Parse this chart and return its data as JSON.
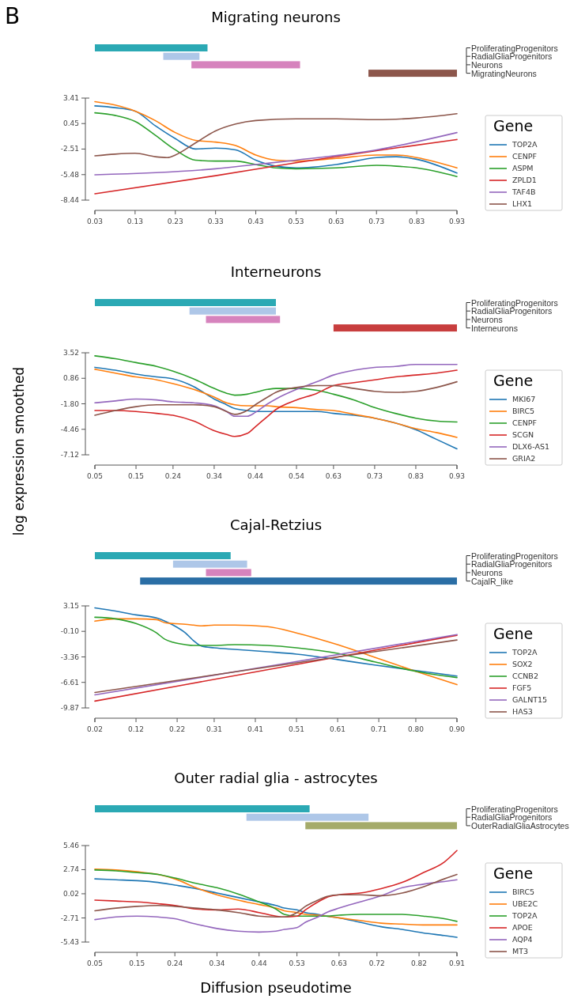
{
  "chart_data": [
    {
      "type": "bar",
      "orientation": "horizontal",
      "title": "Migrating neurons",
      "annotations": [
        "B"
      ],
      "categories": [
        "ProliferatingProgenitors",
        "RadialGliaProgenitors",
        "Neurons",
        "MigratingNeurons"
      ],
      "base": [
        0.03,
        0.2,
        0.27,
        0.71
      ],
      "values": [
        0.28,
        0.09,
        0.27,
        0.22
      ],
      "colors": [
        "#2ba9b4",
        "#aec7e8",
        "#d683bd",
        "#8c564b"
      ],
      "xlim": [
        0.03,
        0.93
      ],
      "tick_labels": false
    },
    {
      "type": "line",
      "legend_title": "Gene",
      "legend": "right",
      "xlim": [
        0.03,
        0.93
      ],
      "xticks": [
        0.03,
        0.13,
        0.23,
        0.33,
        0.43,
        0.53,
        0.63,
        0.73,
        0.83,
        0.93
      ],
      "ylim": [
        -8.44,
        3.41
      ],
      "yticks": [
        3.41,
        0.45,
        -2.51,
        -5.48,
        -8.44
      ],
      "x": [
        0.03,
        0.08,
        0.13,
        0.18,
        0.23,
        0.28,
        0.33,
        0.38,
        0.43,
        0.48,
        0.53,
        0.63,
        0.73,
        0.78,
        0.83,
        0.93
      ],
      "series": [
        {
          "name": "TOP2A",
          "color": "#1f77b4",
          "values": [
            2.5,
            2.3,
            1.9,
            0.2,
            -1.3,
            -2.5,
            -2.4,
            -2.6,
            -3.8,
            -4.5,
            -4.7,
            -4.3,
            -3.5,
            -3.4,
            -3.7,
            -5.3
          ]
        },
        {
          "name": "CENPF",
          "color": "#ff7f0e",
          "values": [
            3.0,
            2.6,
            1.9,
            0.8,
            -0.6,
            -1.5,
            -1.7,
            -2.1,
            -3.2,
            -3.8,
            -3.9,
            -3.6,
            -3.2,
            -3.2,
            -3.5,
            -4.7
          ]
        },
        {
          "name": "ASPM",
          "color": "#2ca02c",
          "values": [
            1.7,
            1.4,
            0.7,
            -0.9,
            -2.6,
            -3.8,
            -3.9,
            -3.9,
            -4.3,
            -4.7,
            -4.8,
            -4.7,
            -4.4,
            -4.5,
            -4.7,
            -5.7
          ]
        },
        {
          "name": "ZPLD1",
          "color": "#d62728",
          "x": [
            0.03,
            0.33,
            0.53,
            0.73,
            0.93
          ],
          "values": [
            -7.7,
            -5.6,
            -4.1,
            -2.7,
            -1.4
          ]
        },
        {
          "name": "TAF4B",
          "color": "#9467bd",
          "x": [
            0.03,
            0.33,
            0.43,
            0.53,
            0.73,
            0.93
          ],
          "values": [
            -5.5,
            -4.8,
            -4.3,
            -3.8,
            -2.6,
            -0.6
          ]
        },
        {
          "name": "LHX1",
          "color": "#8c564b",
          "x": [
            0.03,
            0.08,
            0.13,
            0.18,
            0.21,
            0.23,
            0.28,
            0.33,
            0.38,
            0.43,
            0.53,
            0.63,
            0.73,
            0.83,
            0.93
          ],
          "values": [
            -3.3,
            -3.1,
            -3.0,
            -3.4,
            -3.5,
            -3.2,
            -1.8,
            -0.4,
            0.4,
            0.8,
            1.0,
            1.0,
            0.9,
            1.1,
            1.6
          ]
        }
      ]
    },
    {
      "type": "bar",
      "orientation": "horizontal",
      "title": "Interneurons",
      "categories": [
        "ProliferatingProgenitors",
        "RadialGliaProgenitors",
        "Neurons",
        "Interneurons"
      ],
      "base": [
        0.05,
        0.28,
        0.32,
        0.63
      ],
      "values": [
        0.44,
        0.21,
        0.18,
        0.3
      ],
      "colors": [
        "#2ba9b4",
        "#aec7e8",
        "#d683bd",
        "#c83e3e"
      ],
      "xlim": [
        0.05,
        0.93
      ],
      "tick_labels": false
    },
    {
      "type": "line",
      "ylabel": "log expression smoothed",
      "legend_title": "Gene",
      "legend": "right",
      "xlim": [
        0.05,
        0.93
      ],
      "xticks": [
        0.05,
        0.15,
        0.24,
        0.34,
        0.44,
        0.54,
        0.63,
        0.73,
        0.83,
        0.93
      ],
      "ylim": [
        -7.12,
        3.52
      ],
      "yticks": [
        3.52,
        0.86,
        {
          "value": -1.8,
          "label": "-1.80"
        },
        -4.46,
        -7.12
      ],
      "x": [
        0.05,
        0.1,
        0.15,
        0.2,
        0.24,
        0.29,
        0.34,
        0.37,
        0.39,
        0.42,
        0.44,
        0.47,
        0.49,
        0.54,
        0.59,
        0.63,
        0.68,
        0.73,
        0.78,
        0.83,
        0.88,
        0.93
      ],
      "series": [
        {
          "name": "MKI67",
          "color": "#1f77b4",
          "values": [
            2.0,
            1.7,
            1.3,
            1.0,
            0.8,
            0.0,
            -1.3,
            -1.9,
            -2.3,
            -2.5,
            -2.6,
            -2.6,
            -2.6,
            -2.6,
            -2.6,
            -2.8,
            -3.0,
            -3.3,
            -3.8,
            -4.5,
            -5.5,
            -6.5
          ]
        },
        {
          "name": "BIRC5",
          "color": "#ff7f0e",
          "values": [
            1.8,
            1.4,
            1.0,
            0.7,
            0.3,
            -0.3,
            -1.1,
            -1.7,
            -1.9,
            -2.0,
            -2.0,
            -2.0,
            -2.1,
            -2.2,
            -2.4,
            -2.5,
            -2.9,
            -3.3,
            -3.8,
            -4.4,
            -4.8,
            -5.3
          ]
        },
        {
          "name": "CENPF",
          "color": "#2ca02c",
          "values": [
            3.2,
            2.9,
            2.5,
            2.1,
            1.6,
            0.8,
            -0.2,
            -0.7,
            -0.9,
            -0.8,
            -0.6,
            -0.3,
            -0.2,
            -0.2,
            -0.4,
            -0.8,
            -1.4,
            -2.2,
            -2.8,
            -3.3,
            -3.6,
            -3.7
          ]
        },
        {
          "name": "SCGN",
          "color": "#d62728",
          "values": [
            -2.5,
            -2.5,
            -2.6,
            -2.8,
            -3.0,
            -3.6,
            -4.6,
            -5.0,
            -5.2,
            -4.9,
            -4.2,
            -3.1,
            -2.4,
            -1.4,
            -0.7,
            0.1,
            0.4,
            0.7,
            1.0,
            1.2,
            1.4,
            1.7
          ]
        },
        {
          "name": "DLX6-AS1",
          "color": "#9467bd",
          "values": [
            -1.7,
            -1.5,
            -1.3,
            -1.4,
            -1.6,
            -1.7,
            -2.0,
            -2.6,
            -3.1,
            -3.1,
            -2.7,
            -1.8,
            -1.3,
            -0.3,
            0.5,
            1.2,
            1.7,
            2.0,
            2.1,
            2.3,
            2.3,
            2.3
          ]
        },
        {
          "name": "GRIA2",
          "color": "#8c564b",
          "values": [
            -3.0,
            -2.5,
            -2.1,
            -1.9,
            -1.9,
            -1.9,
            -2.1,
            -2.6,
            -2.9,
            -2.5,
            -1.9,
            -1.1,
            -0.6,
            -0.1,
            0.1,
            0.1,
            -0.2,
            -0.5,
            -0.6,
            -0.5,
            -0.1,
            0.5
          ]
        }
      ]
    },
    {
      "type": "bar",
      "orientation": "horizontal",
      "title": "Cajal-Retzius",
      "categories": [
        "ProliferatingProgenitors",
        "RadialGliaProgenitors",
        "Neurons",
        "CajalR_like"
      ],
      "base": [
        0.02,
        0.21,
        0.29,
        0.13
      ],
      "values": [
        0.33,
        0.18,
        0.11,
        0.77
      ],
      "colors": [
        "#2ba9b4",
        "#aec7e8",
        "#d683bd",
        "#2a6ea5"
      ],
      "xlim": [
        0.02,
        0.9
      ],
      "tick_labels": false
    },
    {
      "type": "line",
      "legend_title": "Gene",
      "legend": "right",
      "xlim": [
        0.02,
        0.9
      ],
      "xticks": [
        0.02,
        0.12,
        0.22,
        0.31,
        0.41,
        0.51,
        0.61,
        0.71,
        {
          "value": 0.8,
          "label": "0.80"
        },
        {
          "value": 0.9,
          "label": "0.90"
        }
      ],
      "ylim": [
        -9.87,
        3.15
      ],
      "yticks": [
        3.15,
        {
          "value": -0.1,
          "label": "-0.10"
        },
        -3.36,
        -6.61,
        -9.87
      ],
      "x": [
        0.02,
        0.07,
        0.12,
        0.17,
        0.19,
        0.21,
        0.24,
        0.26,
        0.28,
        0.31,
        0.36,
        0.44,
        0.51,
        0.61,
        0.7,
        0.8,
        0.9
      ],
      "series": [
        {
          "name": "TOP2A",
          "color": "#1f77b4",
          "values": [
            2.9,
            2.5,
            2.0,
            1.6,
            1.2,
            0.7,
            -0.3,
            -1.3,
            -2.0,
            -2.2,
            -2.4,
            -2.7,
            -3.0,
            -3.7,
            -4.4,
            -5.1,
            -5.8
          ]
        },
        {
          "name": "SOX2",
          "color": "#ff7f0e",
          "values": [
            1.2,
            1.5,
            1.5,
            1.4,
            1.0,
            0.9,
            0.8,
            0.7,
            0.6,
            0.7,
            0.7,
            0.5,
            -0.3,
            -1.8,
            -3.4,
            -5.2,
            -6.9
          ]
        },
        {
          "name": "CCNB2",
          "color": "#2ca02c",
          "values": [
            1.7,
            1.5,
            0.9,
            -0.3,
            -1.1,
            -1.5,
            -1.8,
            -1.9,
            -1.9,
            -1.9,
            -1.8,
            -1.9,
            -2.2,
            -2.9,
            -4.0,
            -5.2,
            -6.0
          ]
        },
        {
          "name": "FGF5",
          "color": "#d62728",
          "x": [
            0.02,
            0.46,
            0.9
          ],
          "values": [
            -9.0,
            -4.8,
            -0.6
          ]
        },
        {
          "name": "GALNT15",
          "color": "#9467bd",
          "x": [
            0.02,
            0.46,
            0.9
          ],
          "values": [
            -8.2,
            -4.4,
            -0.5
          ]
        },
        {
          "name": "HAS3",
          "color": "#8c564b",
          "x": [
            0.02,
            0.46,
            0.9
          ],
          "values": [
            -7.9,
            -4.5,
            -1.2
          ]
        }
      ]
    },
    {
      "type": "bar",
      "orientation": "horizontal",
      "title": "Outer radial glia - astrocytes",
      "categories": [
        "ProliferatingProgenitors",
        "RadialGliaProgenitors",
        "OuterRadialGliaAstrocytes"
      ],
      "base": [
        0.05,
        0.41,
        0.55
      ],
      "values": [
        0.51,
        0.29,
        0.36
      ],
      "colors": [
        "#2ba9b4",
        "#aec7e8",
        "#a5ab6a"
      ],
      "xlim": [
        0.05,
        0.91
      ],
      "tick_labels": false
    },
    {
      "type": "line",
      "xlabel": "Diffusion pseudotime",
      "legend_title": "Gene",
      "legend": "right",
      "xlim": [
        0.05,
        0.91
      ],
      "xticks": [
        0.05,
        0.15,
        0.24,
        0.34,
        0.44,
        0.53,
        0.63,
        0.72,
        0.82,
        0.91
      ],
      "ylim": [
        -5.43,
        5.46
      ],
      "yticks": [
        5.46,
        2.74,
        0.02,
        -2.71,
        -5.43
      ],
      "x": [
        0.05,
        0.1,
        0.15,
        0.2,
        0.24,
        0.29,
        0.34,
        0.39,
        0.44,
        0.48,
        0.5,
        0.53,
        0.55,
        0.58,
        0.6,
        0.63,
        0.68,
        0.73,
        0.78,
        0.83,
        0.88,
        0.91
      ],
      "series": [
        {
          "name": "BIRC5",
          "color": "#1f77b4",
          "values": [
            1.7,
            1.6,
            1.5,
            1.3,
            1.0,
            0.6,
            0.1,
            -0.4,
            -0.9,
            -1.3,
            -1.6,
            -1.8,
            -2.1,
            -2.3,
            -2.5,
            -2.7,
            -3.2,
            -3.7,
            -4.0,
            -4.4,
            -4.7,
            -4.9
          ]
        },
        {
          "name": "UBE2C",
          "color": "#ff7f0e",
          "values": [
            2.8,
            2.7,
            2.5,
            2.2,
            1.7,
            0.7,
            -0.1,
            -0.7,
            -1.2,
            -1.6,
            -1.9,
            -2.1,
            -2.3,
            -2.4,
            -2.5,
            -2.7,
            -3.0,
            -3.3,
            -3.4,
            -3.5,
            -3.5,
            -3.5
          ]
        },
        {
          "name": "TOP2A",
          "color": "#2ca02c",
          "values": [
            2.7,
            2.6,
            2.4,
            2.2,
            1.8,
            1.2,
            0.7,
            0.0,
            -0.9,
            -1.7,
            -2.3,
            -2.5,
            -2.5,
            -2.5,
            -2.5,
            -2.4,
            -2.3,
            -2.3,
            -2.3,
            -2.5,
            -2.8,
            -3.1
          ]
        },
        {
          "name": "APOE",
          "color": "#d62728",
          "values": [
            -0.7,
            -0.8,
            -0.9,
            -1.1,
            -1.3,
            -1.7,
            -1.8,
            -1.7,
            -2.1,
            -2.5,
            -2.6,
            -2.5,
            -1.8,
            -0.9,
            -0.4,
            -0.1,
            0.1,
            0.6,
            1.3,
            2.4,
            3.6,
            4.9
          ]
        },
        {
          "name": "AQP4",
          "color": "#9467bd",
          "values": [
            -2.9,
            -2.6,
            -2.5,
            -2.6,
            -2.8,
            -3.4,
            -3.9,
            -4.2,
            -4.3,
            -4.2,
            -4.0,
            -3.8,
            -3.2,
            -2.6,
            -2.1,
            -1.6,
            -0.9,
            -0.2,
            0.7,
            1.1,
            1.4,
            1.6
          ]
        },
        {
          "name": "MT3",
          "color": "#8c564b",
          "values": [
            -1.9,
            -1.6,
            -1.4,
            -1.3,
            -1.4,
            -1.6,
            -1.8,
            -2.1,
            -2.5,
            -2.6,
            -2.6,
            -2.1,
            -1.4,
            -0.7,
            -0.3,
            -0.1,
            -0.1,
            -0.2,
            0.1,
            0.8,
            1.7,
            2.2
          ]
        }
      ]
    }
  ]
}
